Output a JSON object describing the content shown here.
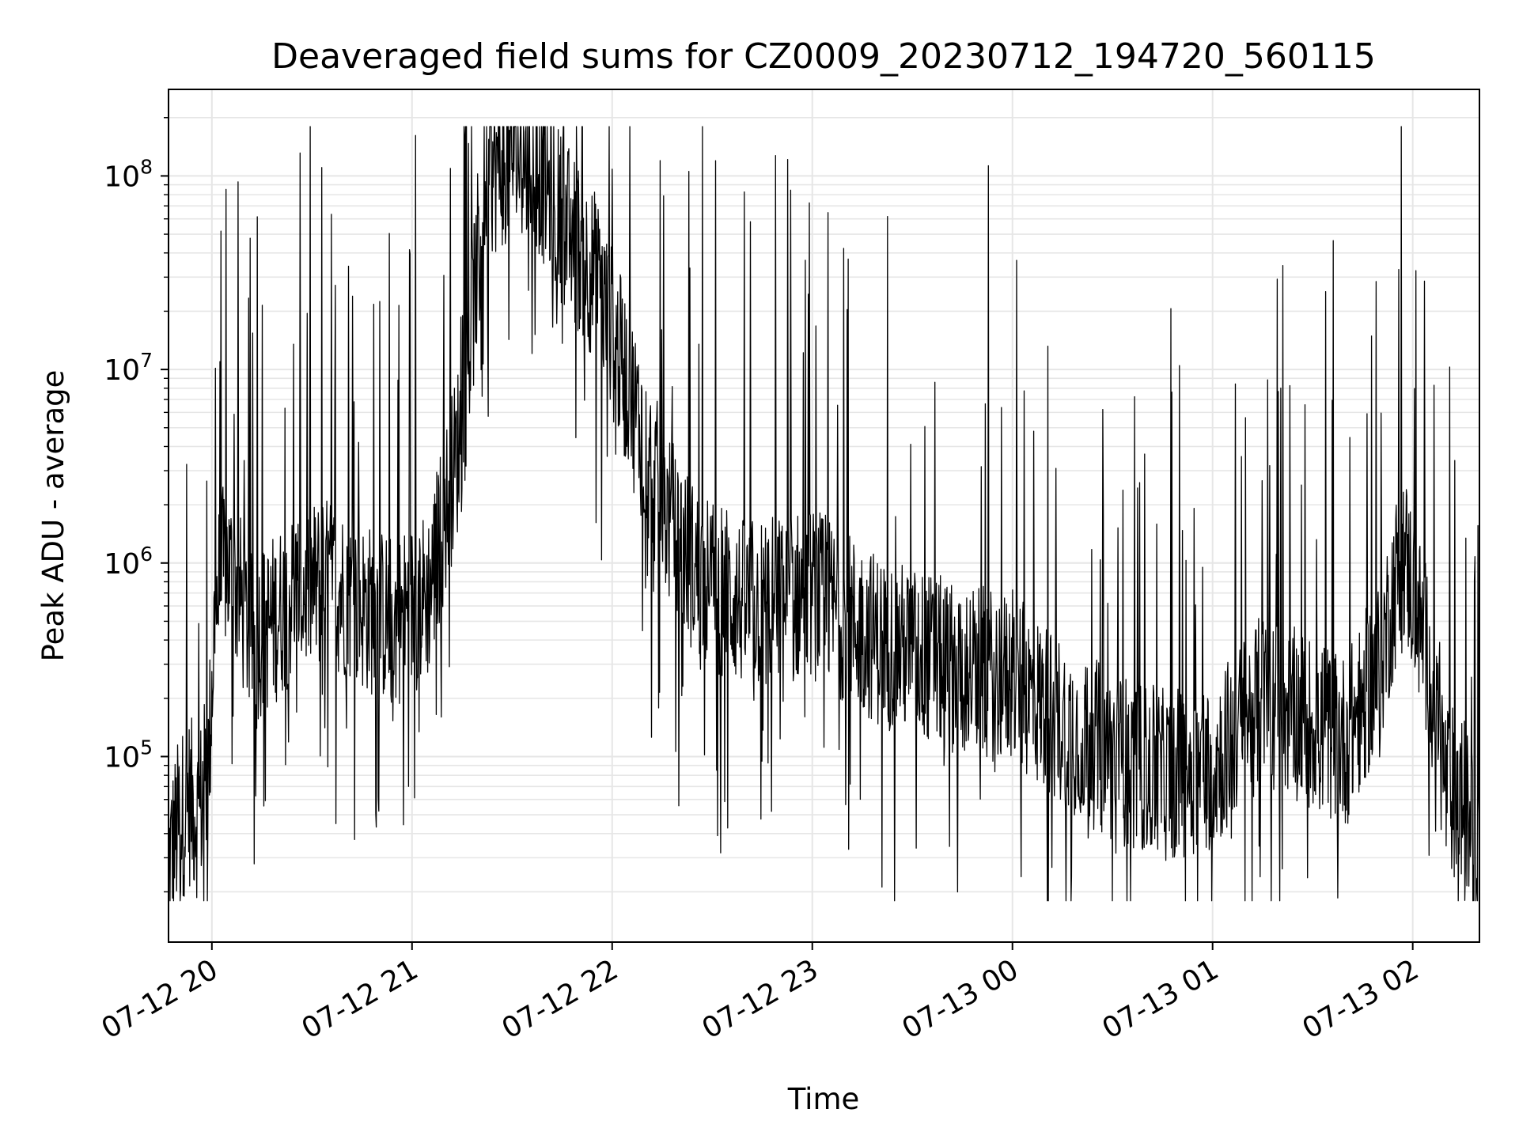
{
  "chart_data": {
    "type": "line",
    "title": "Deaveraged field sums for CZ0009_20230712_194720_560115",
    "xlabel": "Time",
    "ylabel": "Peak ADU - average",
    "yscale": "log",
    "xlim": [
      "2023-07-12 19:47",
      "2023-07-13 02:20"
    ],
    "ylim": [
      11000,
      280000000
    ],
    "grid": true,
    "line_color": "#000000",
    "grid_color": "#e6e6e6",
    "x_ticks": [
      "2023-07-12 20:00",
      "2023-07-12 21:00",
      "2023-07-12 22:00",
      "2023-07-12 23:00",
      "2023-07-13 00:00",
      "2023-07-13 01:00",
      "2023-07-13 02:00"
    ],
    "x_tick_labels": [
      "07-12 20",
      "07-12 21",
      "07-12 22",
      "07-12 23",
      "07-13 00",
      "07-13 01",
      "07-13 02"
    ],
    "y_ticks": [
      100000,
      1000000,
      10000000,
      100000000
    ],
    "y_tick_labels": [
      {
        "base": "10",
        "exp": "5"
      },
      {
        "base": "10",
        "exp": "6"
      },
      {
        "base": "10",
        "exp": "7"
      },
      {
        "base": "10",
        "exp": "8"
      }
    ],
    "series": [
      {
        "x": [
          "2023-07-12 19:47",
          "2023-07-12 19:50",
          "2023-07-12 19:53",
          "2023-07-12 19:56",
          "2023-07-12 19:59",
          "2023-07-12 20:01",
          "2023-07-12 20:04",
          "2023-07-12 20:08",
          "2023-07-12 20:12",
          "2023-07-12 20:18",
          "2023-07-12 20:25",
          "2023-07-12 20:35",
          "2023-07-12 20:45",
          "2023-07-12 20:55",
          "2023-07-12 21:05",
          "2023-07-12 21:15",
          "2023-07-12 21:22",
          "2023-07-12 21:30",
          "2023-07-12 21:38",
          "2023-07-12 21:45",
          "2023-07-12 21:55",
          "2023-07-12 22:05",
          "2023-07-12 22:15",
          "2023-07-12 22:25",
          "2023-07-12 22:40",
          "2023-07-12 23:00",
          "2023-07-12 23:20",
          "2023-07-12 23:40",
          "2023-07-13 00:00",
          "2023-07-13 00:15",
          "2023-07-13 00:30",
          "2023-07-13 00:45",
          "2023-07-13 01:00",
          "2023-07-13 01:15",
          "2023-07-13 01:30",
          "2023-07-13 01:40",
          "2023-07-13 01:50",
          "2023-07-13 01:57",
          "2023-07-13 02:05",
          "2023-07-13 02:10",
          "2023-07-13 02:15",
          "2023-07-13 02:20"
        ],
        "y": [
          28000,
          45000,
          60000,
          50000,
          90000,
          600000,
          1000000,
          700000,
          400000,
          500000,
          700000,
          800000,
          600000,
          500000,
          700000,
          5000000,
          100000000,
          130000000,
          110000000,
          60000000,
          30000000,
          8000000,
          2000000,
          900000,
          600000,
          700000,
          400000,
          300000,
          250000,
          150000,
          100000,
          80000,
          90000,
          200000,
          150000,
          120000,
          300000,
          1200000,
          300000,
          70000,
          60000,
          30000
        ]
      }
    ]
  }
}
